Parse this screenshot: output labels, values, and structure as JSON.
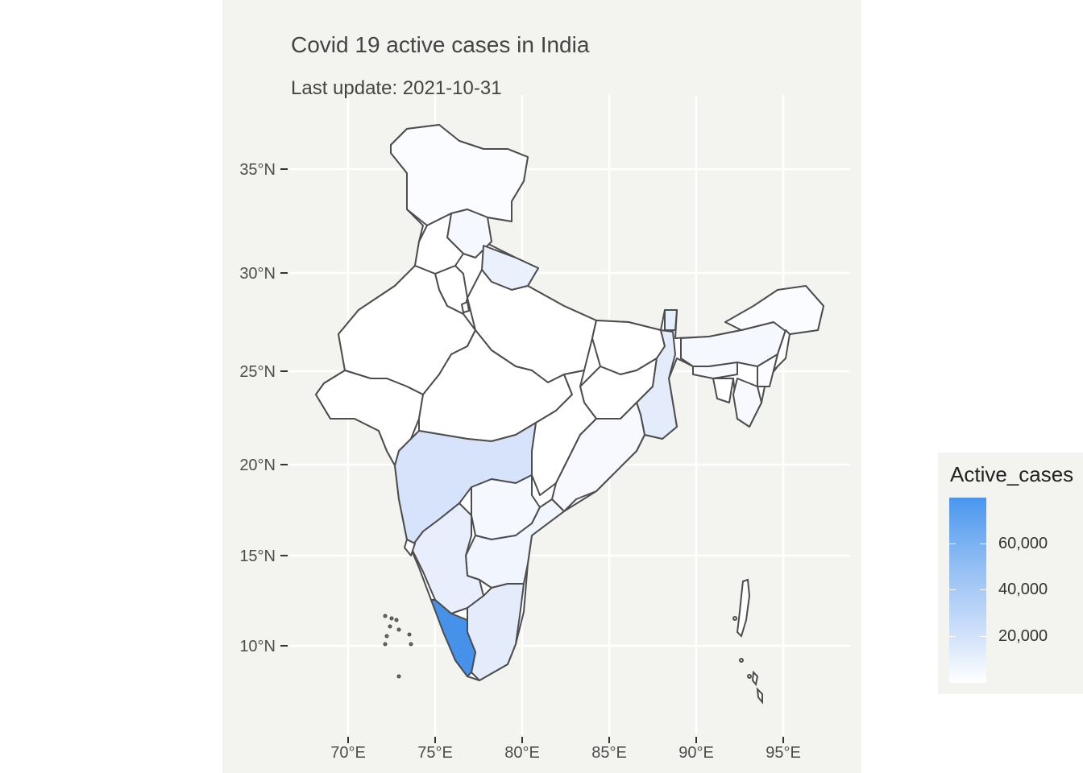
{
  "title": "Covid 19 active cases in India",
  "subtitle": "Last update: 2021-10-31",
  "axes": {
    "x_ticks": [
      "70°E",
      "75°E",
      "80°E",
      "85°E",
      "90°E",
      "95°E"
    ],
    "y_ticks": [
      "35°N",
      "30°N",
      "25°N",
      "20°N",
      "15°N",
      "10°N"
    ]
  },
  "legend": {
    "title": "Active_cases",
    "labels": [
      "60,000",
      "40,000",
      "20,000"
    ],
    "colors": {
      "high": "#4a96ef",
      "low": "#ffffff"
    }
  },
  "map_style": {
    "background": "#f3f3ef",
    "grid": "#ffffff",
    "border": "#4d4d4d"
  },
  "chart_data": {
    "type": "choropleth",
    "region": "India",
    "value_field": "Active_cases",
    "legend_breaks": [
      20000,
      40000,
      60000
    ],
    "x_range": [
      67,
      98
    ],
    "y_range": [
      6,
      38
    ],
    "notes": "Kerala shows the highest active cases (darkest blue); Maharashtra, Karnataka, Tamil Nadu and West Bengal lightly shaded; most other states near zero."
  }
}
